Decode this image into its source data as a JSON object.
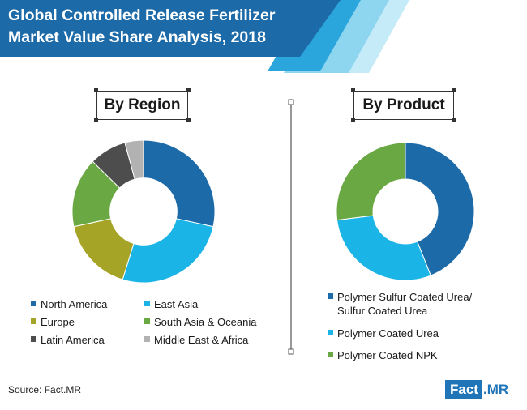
{
  "header": {
    "title_line1": "Global Controlled Release Fertilizer",
    "title_line2": "Market Value Share Analysis, 2018"
  },
  "colors": {
    "banner_dark": "#1d6aa8",
    "banner_mid": "#2aa6dc",
    "banner_light": "#8ed5f0",
    "banner_lighter": "#c5ebf8"
  },
  "chart_data": [
    {
      "type": "pie",
      "title": "By Region",
      "donut": true,
      "categories": [
        "North America",
        "East Asia",
        "Europe",
        "South Asia & Oceania",
        "Latin America",
        "Middle East & Africa"
      ],
      "values": [
        27,
        25,
        16,
        15,
        8,
        4
      ],
      "colors": [
        "#1d6aa8",
        "#1ab4e6",
        "#a6a426",
        "#6aa843",
        "#4d4d4d",
        "#b2b2b2"
      ],
      "legend": "bottom"
    },
    {
      "type": "pie",
      "title": "By Product",
      "donut": true,
      "categories": [
        "Polymer Sulfur Coated Urea/ Sulfur Coated Urea",
        "Polymer Coated Urea",
        "Polymer Coated NPK"
      ],
      "legend_lines": [
        [
          "Polymer Sulfur Coated Urea/",
          "Sulfur Coated Urea"
        ],
        [
          "Polymer Coated Urea"
        ],
        [
          "Polymer Coated NPK"
        ]
      ],
      "values": [
        44,
        29,
        27
      ],
      "colors": [
        "#1d6aa8",
        "#1ab4e6",
        "#6aa843"
      ],
      "legend": "bottom"
    }
  ],
  "footer": {
    "source": "Source: Fact.MR",
    "logo_fact": "Fact",
    "logo_mr": ".MR"
  }
}
